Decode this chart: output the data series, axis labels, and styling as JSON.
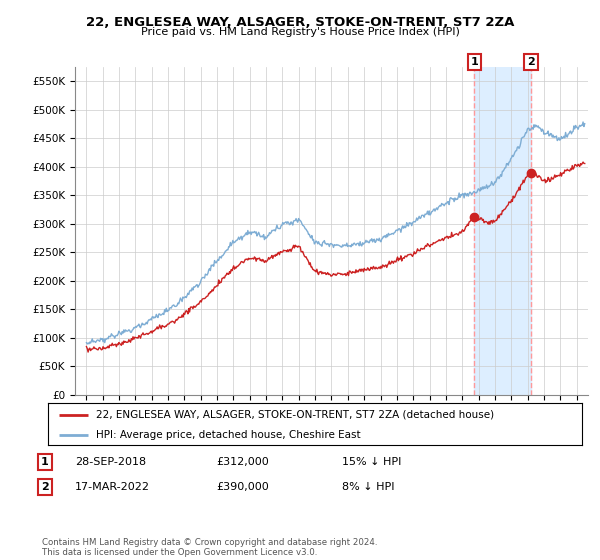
{
  "title": "22, ENGLESEA WAY, ALSAGER, STOKE-ON-TRENT, ST7 2ZA",
  "subtitle": "Price paid vs. HM Land Registry's House Price Index (HPI)",
  "ylim": [
    0,
    575000
  ],
  "yticks": [
    0,
    50000,
    100000,
    150000,
    200000,
    250000,
    300000,
    350000,
    400000,
    450000,
    500000,
    550000
  ],
  "ytick_labels": [
    "£0",
    "£50K",
    "£100K",
    "£150K",
    "£200K",
    "£250K",
    "£300K",
    "£350K",
    "£400K",
    "£450K",
    "£500K",
    "£550K"
  ],
  "hpi_color": "#7eadd4",
  "price_color": "#cc2222",
  "marker1_date": 2018.75,
  "marker1_price": 312000,
  "marker1_label": "1",
  "marker2_date": 2022.21,
  "marker2_price": 390000,
  "marker2_label": "2",
  "legend_line1": "22, ENGLESEA WAY, ALSAGER, STOKE-ON-TRENT, ST7 2ZA (detached house)",
  "legend_line2": "HPI: Average price, detached house, Cheshire East",
  "annotation1_date": "28-SEP-2018",
  "annotation1_price": "£312,000",
  "annotation1_hpi": "15% ↓ HPI",
  "annotation2_date": "17-MAR-2022",
  "annotation2_price": "£390,000",
  "annotation2_hpi": "8% ↓ HPI",
  "footer": "Contains HM Land Registry data © Crown copyright and database right 2024.\nThis data is licensed under the Open Government Licence v3.0.",
  "background_color": "#ffffff",
  "grid_color": "#cccccc",
  "shaded_color": "#ddeeff",
  "dashed_line_color": "#ff9999",
  "marker1_x": 2018.75,
  "marker2_x": 2022.21,
  "xlim_left": 1994.3,
  "xlim_right": 2025.7
}
